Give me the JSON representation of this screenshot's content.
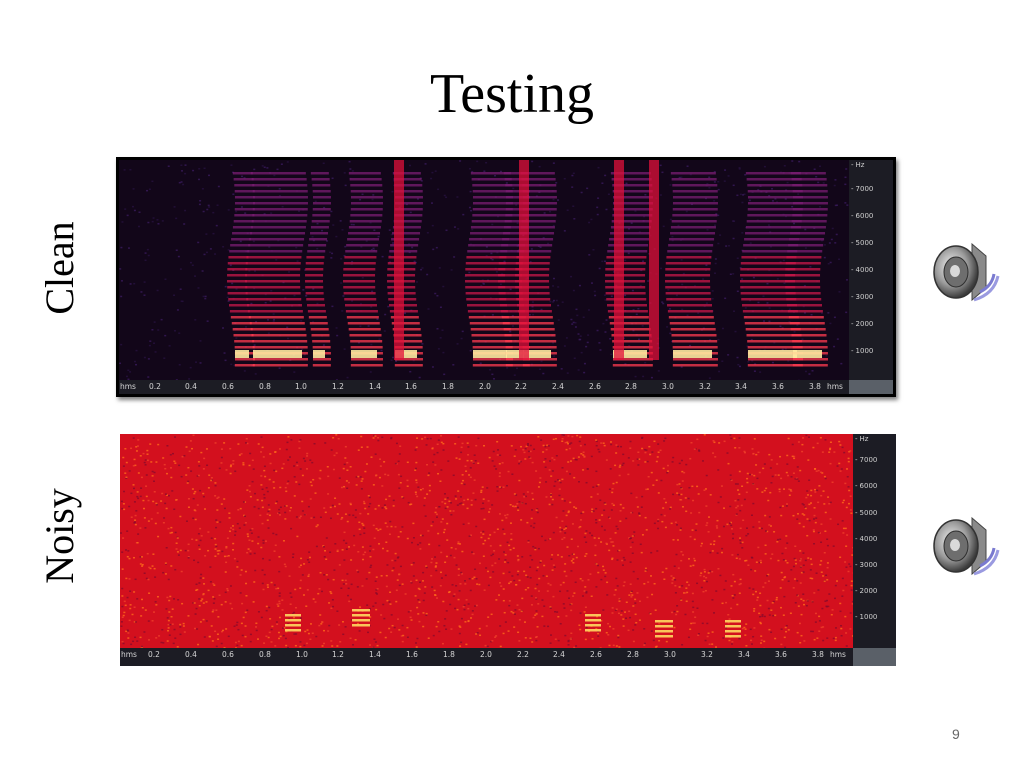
{
  "slide": {
    "title": "Testing",
    "page_number": "9"
  },
  "rows": [
    {
      "label": "Clean",
      "y_unit": "Hz",
      "y_ticks": [
        "7000",
        "6000",
        "5000",
        "4000",
        "3000",
        "2000",
        "1000"
      ],
      "x_ticks": [
        "hms",
        "0.2",
        "0.4",
        "0.6",
        "0.8",
        "1.0",
        "1.2",
        "1.4",
        "1.6",
        "1.8",
        "2.0",
        "2.2",
        "2.4",
        "2.6",
        "2.8",
        "3.0",
        "3.2",
        "3.4",
        "3.6",
        "3.8",
        "hms"
      ]
    },
    {
      "label": "Noisy",
      "y_unit": "Hz",
      "y_ticks": [
        "7000",
        "6000",
        "5000",
        "4000",
        "3000",
        "2000",
        "1000"
      ],
      "x_ticks": [
        "hms",
        "0.2",
        "0.4",
        "0.6",
        "0.8",
        "1.0",
        "1.2",
        "1.4",
        "1.6",
        "1.8",
        "2.0",
        "2.2",
        "2.4",
        "2.6",
        "2.8",
        "3.0",
        "3.2",
        "3.4",
        "3.6",
        "3.8",
        "hms"
      ]
    }
  ],
  "icons": {
    "clean_audio": "speaker-icon",
    "noisy_audio": "speaker-icon"
  },
  "colors": {
    "clean_background": "#120619",
    "clean_energy": "#e0103a",
    "clean_peak": "#ffe9a0",
    "noisy_background": "#d3101e",
    "noisy_peak": "#ffd860"
  }
}
